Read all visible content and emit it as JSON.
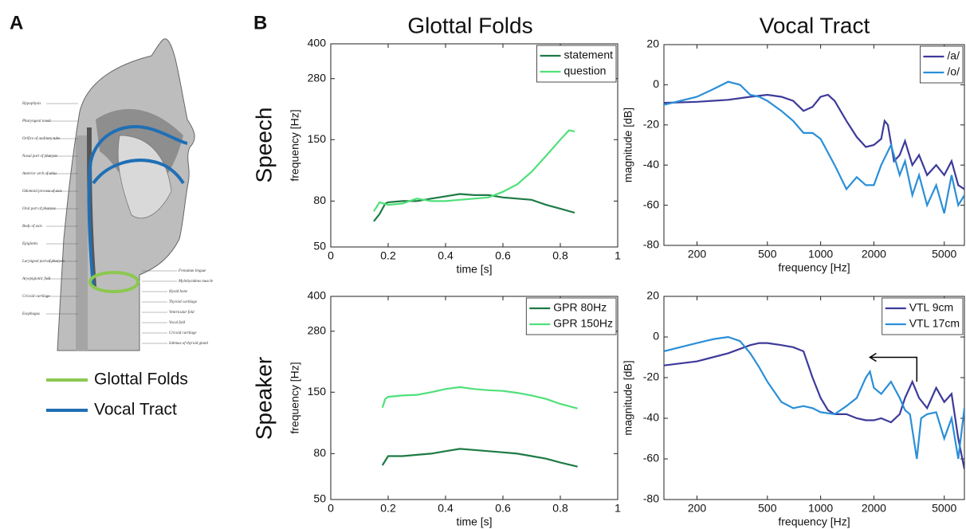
{
  "panel_labels": [
    "A",
    "B"
  ],
  "column_titles": [
    "Glottal Folds",
    "Vocal Tract"
  ],
  "row_titles": [
    "Speech",
    "Speaker"
  ],
  "anatomy": {
    "labels_left": [
      "Hypophysis",
      "Pharyngeal tonsil",
      "Orifice of auditory tube",
      "Nasal part of pharynx",
      "Anterior arch of atlas",
      "Odontoid process of axis",
      "Oral part of pharynx",
      "Body of axis",
      "Epiglottis",
      "Laryngeal part of pharynx",
      "Aryepiglottic fold",
      "Cricoid cartilage",
      "Esophagus"
    ],
    "labels_right": [
      "Frenulum linguæ",
      "Mylohyoideus muscle",
      "Hyoid bone",
      "Thyroid cartilage",
      "Ventricular fold",
      "Vocal fold",
      "Cricoid cartilage",
      "Isthmus of thyroid gland"
    ],
    "legend": [
      {
        "name": "Glottal Folds",
        "color": "#8cc850"
      },
      {
        "name": "Vocal Tract",
        "color": "#1f6fb5"
      }
    ]
  },
  "chart_data": [
    {
      "type": "line",
      "xlabel": "time [s]",
      "ylabel": "frequency [Hz]",
      "yscale": "log",
      "xlim": [
        0,
        1
      ],
      "xticks": [
        0,
        0.2,
        0.4,
        0.6,
        0.8,
        1
      ],
      "ylim": [
        50,
        400
      ],
      "yticks": [
        50,
        80,
        150,
        280,
        400
      ],
      "legend": "upper right",
      "series": [
        {
          "name": "statement",
          "color": "#1e7a45",
          "x": [
            0.15,
            0.17,
            0.19,
            0.2,
            0.25,
            0.3,
            0.35,
            0.4,
            0.45,
            0.5,
            0.55,
            0.6,
            0.65,
            0.7,
            0.75,
            0.8,
            0.85
          ],
          "values": [
            65,
            70,
            78,
            79,
            80,
            80,
            82,
            84,
            86,
            85,
            85,
            83,
            82,
            81,
            77,
            74,
            71
          ]
        },
        {
          "name": "question",
          "color": "#4fe07a",
          "x": [
            0.15,
            0.17,
            0.2,
            0.25,
            0.3,
            0.35,
            0.4,
            0.45,
            0.5,
            0.55,
            0.6,
            0.65,
            0.7,
            0.75,
            0.8,
            0.83,
            0.85
          ],
          "values": [
            72,
            79,
            77,
            78,
            82,
            80,
            80,
            81,
            82,
            83,
            88,
            95,
            108,
            127,
            150,
            165,
            163
          ]
        }
      ]
    },
    {
      "type": "line",
      "xlabel": "frequency [Hz]",
      "ylabel": "magnitude [dB]",
      "xscale": "log",
      "xlim": [
        130,
        6500
      ],
      "xticks": [
        200,
        500,
        1000,
        2000,
        5000
      ],
      "ylim": [
        -80,
        20
      ],
      "yticks": [
        -80,
        -60,
        -40,
        -20,
        0,
        20
      ],
      "legend": "upper right",
      "series": [
        {
          "name": "/a/",
          "color": "#3d3a9a",
          "x": [
            130,
            200,
            300,
            400,
            500,
            600,
            700,
            800,
            900,
            1000,
            1100,
            1200,
            1400,
            1600,
            1800,
            2000,
            2200,
            2300,
            2400,
            2600,
            2800,
            3000,
            3300,
            3600,
            4000,
            4500,
            5000,
            5500,
            6000,
            6500
          ],
          "values": [
            -9,
            -8.5,
            -7.5,
            -6,
            -5,
            -6,
            -8,
            -13,
            -11,
            -6,
            -5,
            -8,
            -18,
            -26,
            -31,
            -30,
            -27,
            -18,
            -20,
            -38,
            -35,
            -28,
            -40,
            -35,
            -45,
            -40,
            -45,
            -38,
            -50,
            -52
          ]
        },
        {
          "name": "/o/",
          "color": "#2a8fd8",
          "x": [
            130,
            200,
            250,
            300,
            350,
            400,
            450,
            500,
            600,
            700,
            800,
            900,
            1000,
            1200,
            1400,
            1600,
            1800,
            2000,
            2200,
            2500,
            2800,
            3000,
            3300,
            3600,
            4000,
            4500,
            5000,
            5500,
            6000,
            6500
          ],
          "values": [
            -10,
            -6,
            -2,
            1.5,
            0,
            -5,
            -6,
            -8,
            -13,
            -18,
            -24,
            -24,
            -27,
            -40,
            -52,
            -46,
            -50,
            -50,
            -40,
            -30,
            -45,
            -38,
            -55,
            -45,
            -60,
            -50,
            -64,
            -45,
            -60,
            -55
          ]
        }
      ]
    },
    {
      "type": "line",
      "xlabel": "time [s]",
      "ylabel": "frequency [Hz]",
      "yscale": "log",
      "xlim": [
        0,
        1
      ],
      "xticks": [
        0,
        0.2,
        0.4,
        0.6,
        0.8,
        1
      ],
      "ylim": [
        50,
        400
      ],
      "yticks": [
        50,
        80,
        150,
        280,
        400
      ],
      "legend": "upper right",
      "series": [
        {
          "name": "GPR 80Hz",
          "color": "#1e7a45",
          "x": [
            0.18,
            0.2,
            0.25,
            0.3,
            0.35,
            0.4,
            0.45,
            0.5,
            0.55,
            0.6,
            0.65,
            0.7,
            0.75,
            0.8,
            0.86
          ],
          "values": [
            71,
            78,
            78,
            79,
            80,
            82,
            84,
            83,
            82,
            81,
            80,
            78,
            76,
            73,
            70
          ]
        },
        {
          "name": "GPR 150Hz",
          "color": "#4fe07a",
          "x": [
            0.18,
            0.19,
            0.2,
            0.25,
            0.3,
            0.35,
            0.4,
            0.45,
            0.5,
            0.55,
            0.6,
            0.65,
            0.7,
            0.75,
            0.8,
            0.86
          ],
          "values": [
            128,
            140,
            143,
            145,
            146,
            150,
            155,
            158,
            155,
            153,
            152,
            149,
            145,
            140,
            133,
            127
          ]
        }
      ]
    },
    {
      "type": "line",
      "xlabel": "frequency [Hz]",
      "ylabel": "magnitude [dB]",
      "xscale": "log",
      "xlim": [
        130,
        6500
      ],
      "xticks": [
        200,
        500,
        1000,
        2000,
        5000
      ],
      "ylim": [
        -80,
        20
      ],
      "yticks": [
        -80,
        -60,
        -40,
        -20,
        0,
        20
      ],
      "legend": "upper right",
      "arrow": {
        "x": [
          3500,
          3500,
          1900
        ],
        "y": [
          -22,
          -10,
          -10
        ]
      },
      "series": [
        {
          "name": "VTL 9cm",
          "color": "#3d3a9a",
          "x": [
            130,
            200,
            300,
            400,
            450,
            500,
            600,
            700,
            800,
            900,
            1000,
            1100,
            1200,
            1400,
            1600,
            1800,
            2000,
            2200,
            2500,
            2800,
            3000,
            3300,
            3600,
            4000,
            4500,
            5000,
            5500,
            6000,
            6500
          ],
          "values": [
            -14,
            -12,
            -8,
            -4,
            -3,
            -3,
            -4,
            -5,
            -7,
            -20,
            -30,
            -36,
            -38,
            -38,
            -40,
            -41,
            -41,
            -40,
            -42,
            -38,
            -30,
            -22,
            -30,
            -35,
            -25,
            -32,
            -28,
            -50,
            -65
          ]
        },
        {
          "name": "VTL 17cm",
          "color": "#2a8fd8",
          "x": [
            130,
            200,
            250,
            300,
            350,
            400,
            450,
            500,
            600,
            700,
            800,
            900,
            1000,
            1200,
            1400,
            1600,
            1800,
            1900,
            2000,
            2200,
            2500,
            2800,
            3000,
            3200,
            3500,
            3700,
            4000,
            4500,
            5000,
            5500,
            6000,
            6500
          ],
          "values": [
            -7,
            -3,
            -1,
            0,
            -2,
            -8,
            -15,
            -22,
            -32,
            -35,
            -34,
            -35,
            -37,
            -38,
            -34,
            -30,
            -20,
            -17,
            -25,
            -28,
            -22,
            -30,
            -36,
            -38,
            -60,
            -40,
            -38,
            -37,
            -50,
            -40,
            -60,
            -35
          ]
        }
      ]
    }
  ]
}
